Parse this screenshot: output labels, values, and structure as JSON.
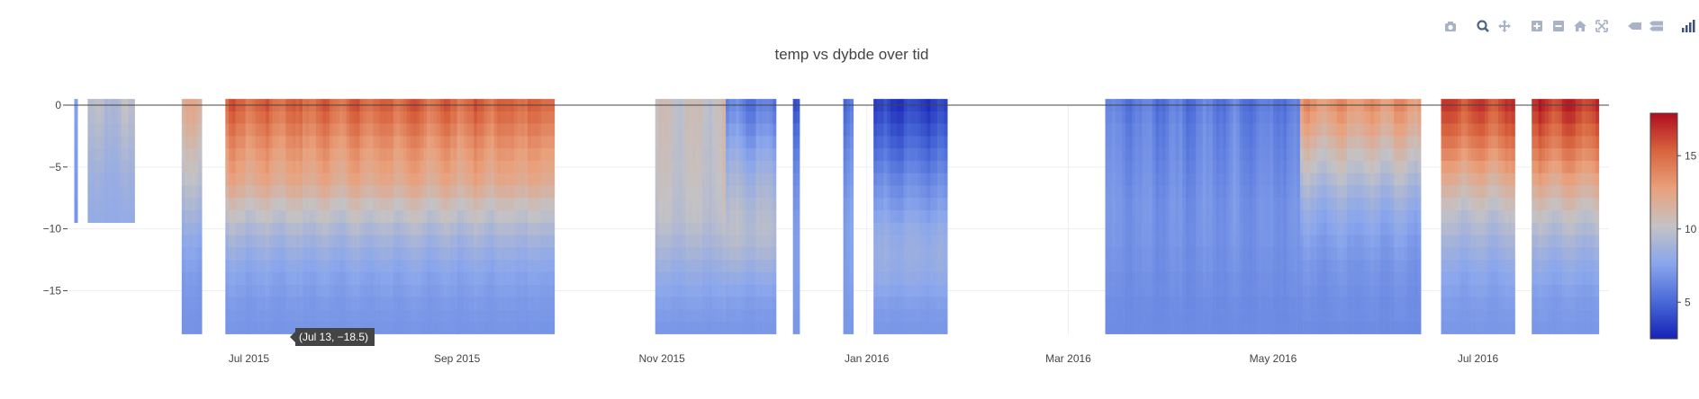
{
  "modebar": {
    "buttons": [
      {
        "icon": "camera-icon"
      },
      {
        "icon": "zoom-icon"
      },
      {
        "icon": "pan-icon"
      },
      {
        "icon": "zoom-in-icon"
      },
      {
        "icon": "zoom-out-icon"
      },
      {
        "icon": "home-icon"
      },
      {
        "icon": "autoscale-icon"
      },
      {
        "icon": "hover-closest-icon"
      },
      {
        "icon": "hover-compare-icon"
      },
      {
        "icon": "plotly-logo-icon"
      }
    ],
    "colors": {
      "icon": "#a9b3c7",
      "active": "#506784",
      "logo": "#3f4f75"
    }
  },
  "tooltip": {
    "text": "(Jul 13, −18.5)"
  },
  "chart_data": {
    "type": "heatmap",
    "title": "temp vs dybde over tid",
    "xlabel": "",
    "ylabel": "",
    "x_range": [
      "2015-05-08",
      "2016-08-09"
    ],
    "y_range": [
      -18.6,
      0
    ],
    "x_ticks": [
      {
        "date": "2015-07-01",
        "label": "Jul 2015"
      },
      {
        "date": "2015-09-01",
        "label": "Sep 2015"
      },
      {
        "date": "2015-11-01",
        "label": "Nov 2015"
      },
      {
        "date": "2016-01-01",
        "label": "Jan 2016"
      },
      {
        "date": "2016-03-01",
        "label": "Mar 2016"
      },
      {
        "date": "2016-05-01",
        "label": "May 2016"
      },
      {
        "date": "2016-07-01",
        "label": "Jul 2016"
      }
    ],
    "y_ticks": [
      0,
      -5,
      -10,
      -15
    ],
    "colorscale": "coolwarm",
    "colorscale_stops": [
      "#1622b5",
      "#4a6ad8",
      "#8aa6ec",
      "#c4c2c4",
      "#e9a17c",
      "#d8643e",
      "#b00d1f"
    ],
    "colorbar": {
      "ticks": [
        5,
        10,
        15
      ],
      "range": [
        2.5,
        17.9
      ]
    },
    "depths": [
      0,
      -1,
      -2,
      -3,
      -4,
      -5,
      -6,
      -7,
      -8,
      -9,
      -10,
      -11,
      -12,
      -13,
      -14,
      -15,
      -16,
      -17,
      -18
    ],
    "segments": [
      {
        "start": "2015-05-10",
        "end": "2015-05-11",
        "max_depth": -9,
        "profile": [
          7.4,
          7.4,
          7.3,
          7.3,
          7.2,
          7.2,
          7.1,
          7.1,
          7.0,
          7.0
        ]
      },
      {
        "start": "2015-05-14",
        "end": "2015-05-28",
        "max_depth": -9,
        "profile": [
          9.5,
          9.4,
          9.2,
          9.0,
          8.8,
          8.6,
          8.4,
          8.3,
          8.2,
          8.1
        ]
      },
      {
        "start": "2015-06-11",
        "end": "2015-06-17",
        "max_depth": -18,
        "profile": [
          11.8,
          11.6,
          11.2,
          10.8,
          10.4,
          10.1,
          9.8,
          9.4,
          9.0,
          8.6,
          8.2,
          7.8,
          7.5,
          7.3,
          7.1,
          7.0,
          6.9,
          6.8,
          6.8
        ]
      },
      {
        "start": "2015-06-24",
        "end": "2015-09-30",
        "max_depth": -18,
        "profile": [
          15.2,
          14.7,
          14.1,
          13.5,
          13.0,
          12.6,
          12.2,
          11.5,
          10.6,
          10.0,
          9.3,
          8.7,
          8.2,
          7.8,
          7.5,
          7.3,
          7.1,
          7.0,
          6.9
        ]
      },
      {
        "start": "2015-10-30",
        "end": "2015-11-20",
        "max_depth": -18,
        "profile": [
          10.5,
          10.5,
          10.4,
          10.4,
          10.3,
          10.3,
          10.2,
          10.1,
          10.0,
          9.9,
          9.6,
          9.2,
          8.8,
          8.4,
          8.0,
          7.7,
          7.4,
          7.2,
          7.0
        ]
      },
      {
        "start": "2015-11-20",
        "end": "2015-12-05",
        "max_depth": -18,
        "profile": [
          6.0,
          6.4,
          6.9,
          7.4,
          7.9,
          8.3,
          8.7,
          9.0,
          9.3,
          9.5,
          9.6,
          9.4,
          9.0,
          8.5,
          8.0,
          7.6,
          7.3,
          7.1,
          7.0
        ]
      },
      {
        "start": "2015-12-10",
        "end": "2015-12-12",
        "max_depth": -18,
        "profile": [
          4.0,
          4.5,
          5.0,
          5.4,
          5.8,
          6.1,
          6.4,
          6.6,
          6.8,
          7.0,
          7.1,
          7.2,
          7.2,
          7.2,
          7.2,
          7.1,
          7.1,
          7.0,
          7.0
        ]
      },
      {
        "start": "2015-12-25",
        "end": "2015-12-28",
        "max_depth": -18,
        "profile": [
          5.0,
          5.3,
          5.6,
          5.9,
          6.2,
          6.4,
          6.6,
          6.8,
          7.0,
          7.1,
          7.2,
          7.2,
          7.2,
          7.2,
          7.2,
          7.1,
          7.1,
          7.0,
          7.0
        ]
      },
      {
        "start": "2016-01-03",
        "end": "2016-01-25",
        "max_depth": -18,
        "profile": [
          3.4,
          3.8,
          4.3,
          4.8,
          5.3,
          5.8,
          6.3,
          6.7,
          7.1,
          7.5,
          7.9,
          8.1,
          8.2,
          8.1,
          7.9,
          7.6,
          7.3,
          7.1,
          7.0
        ]
      },
      {
        "start": "2016-03-12",
        "end": "2016-05-09",
        "max_depth": -18,
        "profile": [
          5.8,
          6.0,
          6.2,
          6.3,
          6.4,
          6.5,
          6.6,
          6.7,
          6.8,
          6.8,
          6.8,
          6.8,
          6.7,
          6.7,
          6.6,
          6.6,
          6.5,
          6.5,
          6.5
        ]
      },
      {
        "start": "2016-05-09",
        "end": "2016-06-14",
        "max_depth": -18,
        "profile": [
          13.2,
          12.6,
          12.0,
          11.3,
          10.6,
          10.0,
          9.4,
          8.8,
          8.3,
          7.9,
          7.6,
          7.3,
          7.1,
          6.9,
          6.8,
          6.7,
          6.6,
          6.6,
          6.5
        ]
      },
      {
        "start": "2016-06-20",
        "end": "2016-07-12",
        "max_depth": -18,
        "profile": [
          16.2,
          15.6,
          15.0,
          14.2,
          13.4,
          12.6,
          11.8,
          11.0,
          10.3,
          9.7,
          9.2,
          8.7,
          8.3,
          7.9,
          7.6,
          7.4,
          7.2,
          7.1,
          7.0
        ]
      },
      {
        "start": "2016-07-17",
        "end": "2016-08-06",
        "max_depth": -18,
        "profile": [
          16.8,
          16.2,
          15.5,
          14.8,
          14.0,
          13.2,
          12.4,
          11.6,
          10.8,
          10.1,
          9.5,
          8.9,
          8.4,
          8.0,
          7.7,
          7.4,
          7.2,
          7.1,
          7.0
        ]
      }
    ]
  }
}
